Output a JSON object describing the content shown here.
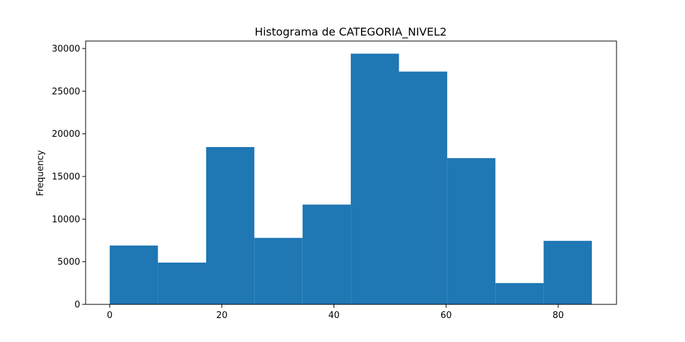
{
  "chart_data": {
    "type": "histogram",
    "title": "Histograma de CATEGORIA_NIVEL2",
    "ylabel": "Frequency",
    "bins": [
      0,
      8.6,
      17.2,
      25.8,
      34.4,
      43,
      51.6,
      60.2,
      68.8,
      77.4,
      86
    ],
    "values": [
      6900,
      4900,
      18450,
      7800,
      11700,
      29400,
      27300,
      17150,
      2500,
      7450
    ],
    "color": "#1f77b4",
    "xlim": [
      -4.3,
      90.4
    ],
    "xticks": [
      0,
      20,
      40,
      60,
      80
    ],
    "ylim": [
      0,
      30880
    ],
    "yticks": [
      0,
      5000,
      10000,
      15000,
      20000,
      25000,
      30000
    ],
    "grid": false
  }
}
